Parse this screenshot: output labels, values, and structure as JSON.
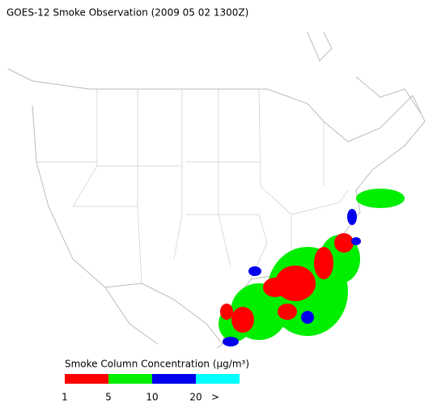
{
  "title": "GOES-12 Smoke Observation (2009 05 02  1300Z)",
  "legend": {
    "title": "Smoke Column Concentration (μg/m³)",
    "colors": [
      "#ff0000",
      "#00ee00",
      "#0000ee",
      "#00ffff"
    ],
    "ticks": [
      "1",
      "5",
      "10",
      "20",
      ">"
    ]
  }
}
